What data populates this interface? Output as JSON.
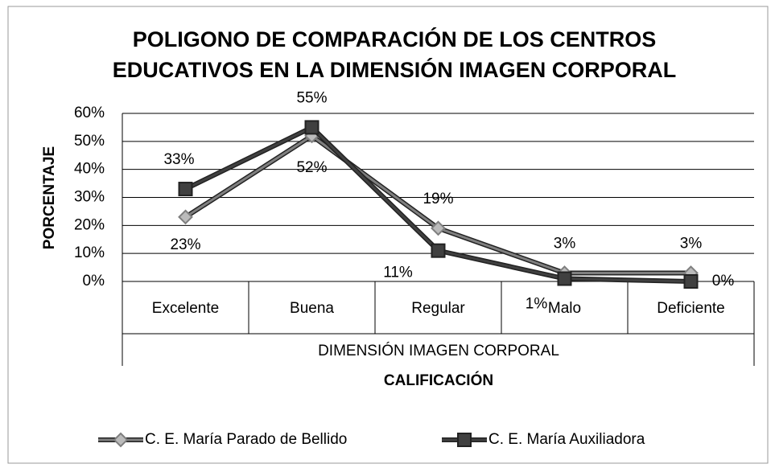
{
  "chart_data": {
    "type": "line",
    "title": "POLIGONO DE COMPARACIÓN DE LOS CENTROS EDUCATIVOS EN LA DIMENSIÓN IMAGEN CORPORAL",
    "ylabel": "PORCENTAJE",
    "xgroup": "DIMENSIÓN IMAGEN CORPORAL",
    "xlabel": "CALIFICACIÓN",
    "categories": [
      "Excelente",
      "Buena",
      "Regular",
      "Malo",
      "Deficiente"
    ],
    "series": [
      {
        "name": "C. E.  María Parado de Bellido",
        "color": "#7f7f7f",
        "marker": "diamond",
        "values": [
          23,
          52,
          19,
          3,
          3
        ],
        "value_labels": [
          "23%",
          "52%",
          "19%",
          "3%",
          "3%"
        ]
      },
      {
        "name": "C. E.  María Auxiliadora",
        "color": "#404040",
        "marker": "square",
        "values": [
          33,
          55,
          11,
          1,
          0
        ],
        "value_labels": [
          "33%",
          "55%",
          "11%",
          "1%",
          "0%"
        ]
      }
    ],
    "ylim": [
      0,
      60
    ],
    "yticks": [
      {
        "value": 0,
        "label": "0%"
      },
      {
        "value": 10,
        "label": "10%"
      },
      {
        "value": 20,
        "label": "20%"
      },
      {
        "value": 30,
        "label": "30%"
      },
      {
        "value": 40,
        "label": "40%"
      },
      {
        "value": 50,
        "label": "50%"
      },
      {
        "value": 60,
        "label": "60%"
      }
    ],
    "grid": true,
    "legend": "bottom"
  }
}
